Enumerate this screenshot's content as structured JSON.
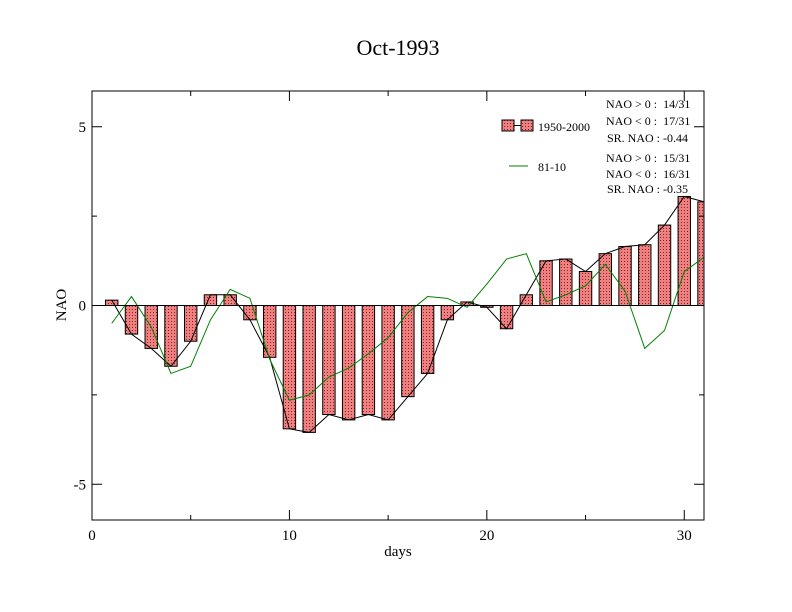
{
  "chart_data": {
    "type": "bar",
    "title": "Oct-1993",
    "xlabel": "days",
    "ylabel": "NAO",
    "xlim": [
      0,
      31
    ],
    "ylim": [
      -6,
      6
    ],
    "xticks": [
      0,
      10,
      20,
      30
    ],
    "yticks": [
      -5,
      0,
      5
    ],
    "x": [
      1,
      2,
      3,
      4,
      5,
      6,
      7,
      8,
      9,
      10,
      11,
      12,
      13,
      14,
      15,
      16,
      17,
      18,
      19,
      20,
      21,
      22,
      23,
      24,
      25,
      26,
      27,
      28,
      29,
      30,
      31
    ],
    "series": [
      {
        "name": "1950-2000",
        "kind": "bar",
        "fill": "#f08080",
        "values": [
          0.15,
          -0.8,
          -1.2,
          -1.7,
          -1.0,
          0.3,
          0.3,
          -0.4,
          -1.45,
          -3.45,
          -3.55,
          -3.05,
          -3.2,
          -3.05,
          -3.2,
          -2.55,
          -1.9,
          -0.4,
          0.1,
          -0.05,
          -0.65,
          0.3,
          1.25,
          1.3,
          0.95,
          1.45,
          1.65,
          1.7,
          2.25,
          3.05,
          2.9
        ]
      },
      {
        "name": "81-10",
        "kind": "line",
        "color": "#008000",
        "values": [
          -0.5,
          0.25,
          -0.6,
          -1.9,
          -1.7,
          -0.4,
          0.45,
          0.2,
          -1.5,
          -2.65,
          -2.5,
          -2.0,
          -1.75,
          -1.35,
          -0.9,
          -0.2,
          0.25,
          0.2,
          -0.05,
          0.6,
          1.3,
          1.45,
          0.1,
          0.3,
          0.55,
          1.15,
          0.4,
          -1.2,
          -0.7,
          0.95,
          1.35
        ]
      }
    ],
    "annotations": [
      {
        "group": "1950-2000",
        "lines": [
          "NAO > 0 :  14/31",
          "NAO < 0 :  17/31",
          "SR. NAO : -0.44"
        ]
      },
      {
        "group": "81-10",
        "lines": [
          "NAO > 0 :  15/31",
          "NAO < 0 :  16/31",
          "SR. NAO : -0.35"
        ]
      }
    ]
  }
}
